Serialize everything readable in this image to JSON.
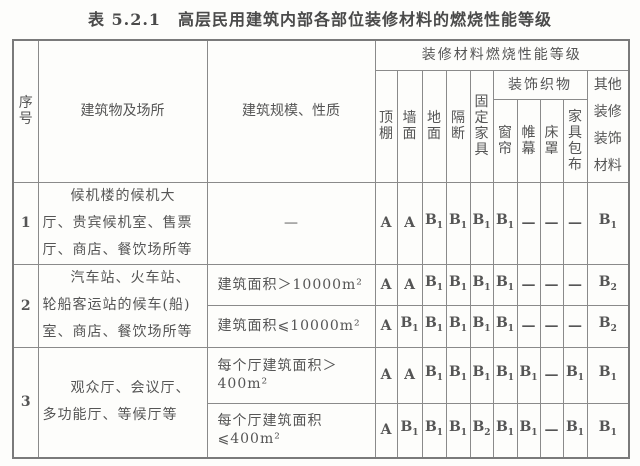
{
  "title": "表 5.2.1　高层民用建筑内部各部位装修材料的燃烧性能等级",
  "header": {
    "seq": "序号",
    "place": "建筑物及场所",
    "scale": "建筑规模、性质",
    "grade_group": "装修材料燃烧性能等级",
    "ceiling": "顶棚",
    "wall": "墙面",
    "floor": "地面",
    "partition": "隔断",
    "fixed_furniture": "固定家具",
    "textiles": "装饰织物",
    "curtain": "窗帘",
    "drape": "帷幕",
    "bedcover": "床罩",
    "upholstery": "家具包布",
    "other": "其他装修装饰材料"
  },
  "rows": [
    {
      "seq": "1",
      "place": "候机楼的候机大厅、贵宾候机室、售票厅、商店、餐饮场所等",
      "sub": [
        {
          "scale": "—",
          "grades": [
            "A",
            "A",
            "B1",
            "B1",
            "B1",
            "B1",
            "—",
            "—",
            "—",
            "B1"
          ]
        }
      ]
    },
    {
      "seq": "2",
      "place": "汽车站、火车站、轮船客运站的候车(船)室、商店、餐饮场所等",
      "sub": [
        {
          "scale": "建筑面积＞10000m²",
          "grades": [
            "A",
            "A",
            "B1",
            "B1",
            "B1",
            "B1",
            "—",
            "—",
            "—",
            "B2"
          ]
        },
        {
          "scale": "建筑面积⩽10000m²",
          "grades": [
            "A",
            "B1",
            "B1",
            "B1",
            "B1",
            "B1",
            "—",
            "—",
            "—",
            "B2"
          ]
        }
      ]
    },
    {
      "seq": "3",
      "place": "观众厅、会议厅、多功能厅、等候厅等",
      "sub": [
        {
          "scale": "每个厅建筑面积＞400m²",
          "grades": [
            "A",
            "A",
            "B1",
            "B1",
            "B1",
            "B1",
            "B1",
            "—",
            "B1",
            "B1"
          ]
        },
        {
          "scale": "每个厅建筑面积⩽400m²",
          "grades": [
            "A",
            "B1",
            "B1",
            "B1",
            "B2",
            "B1",
            "B1",
            "—",
            "B1",
            "B1"
          ]
        }
      ]
    }
  ]
}
